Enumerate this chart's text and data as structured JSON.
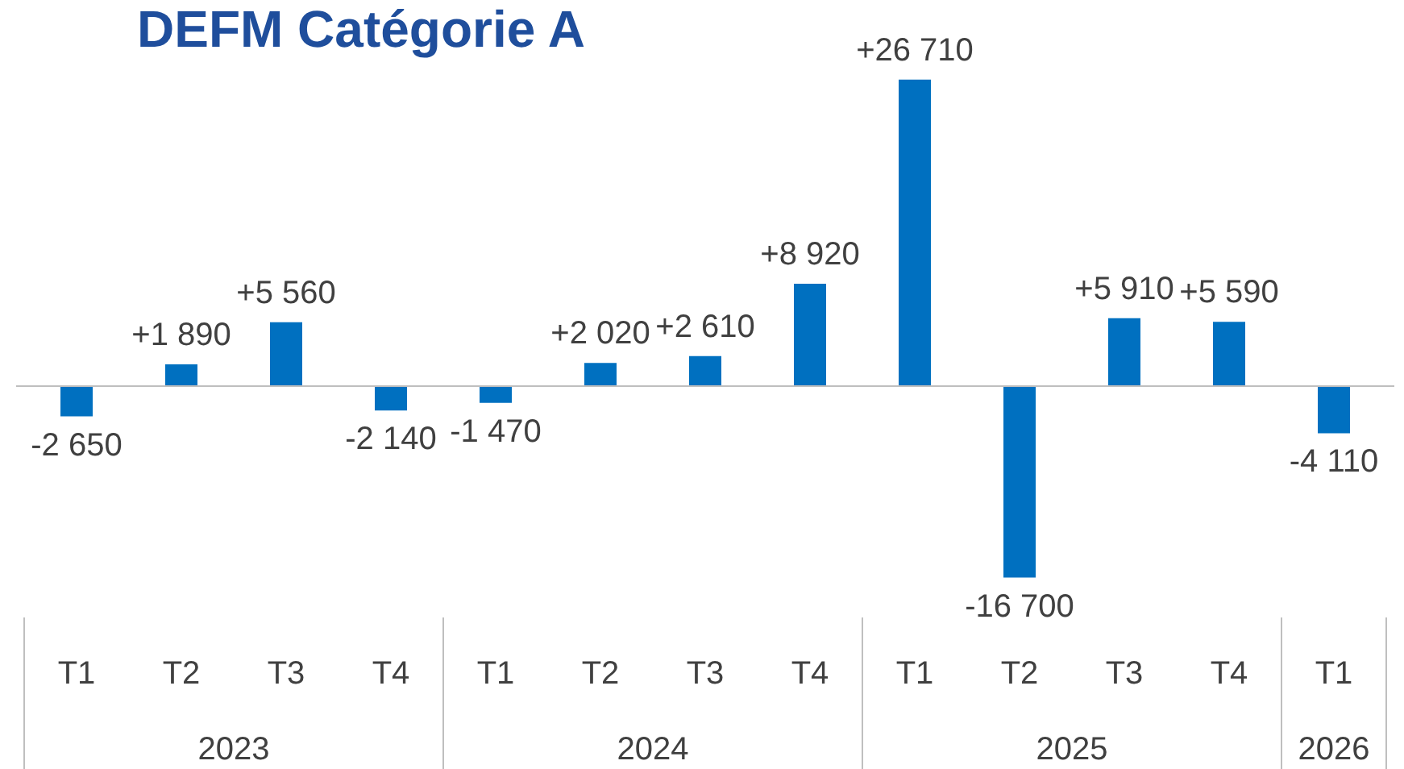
{
  "chart_data": {
    "type": "bar",
    "title": "DEFM Catégorie A",
    "categories": [
      "T1",
      "T2",
      "T3",
      "T4",
      "T1",
      "T2",
      "T3",
      "T4",
      "T1",
      "T2",
      "T3",
      "T4",
      "T1"
    ],
    "values": [
      -2650,
      1890,
      5560,
      -2140,
      -1470,
      2020,
      2610,
      8920,
      26710,
      -16700,
      5910,
      5590,
      -4110
    ],
    "value_labels": [
      "-2 650",
      "+1 890",
      "+5 560",
      "-2 140",
      "-1 470",
      "+2 020",
      "+2 610",
      "+8 920",
      "+26 710",
      "-16 700",
      "+5 910",
      "+5 590",
      "-4 110"
    ],
    "color": "#0070c0",
    "annotations": [
      "2023",
      "2024",
      "2025",
      "2026"
    ]
  }
}
